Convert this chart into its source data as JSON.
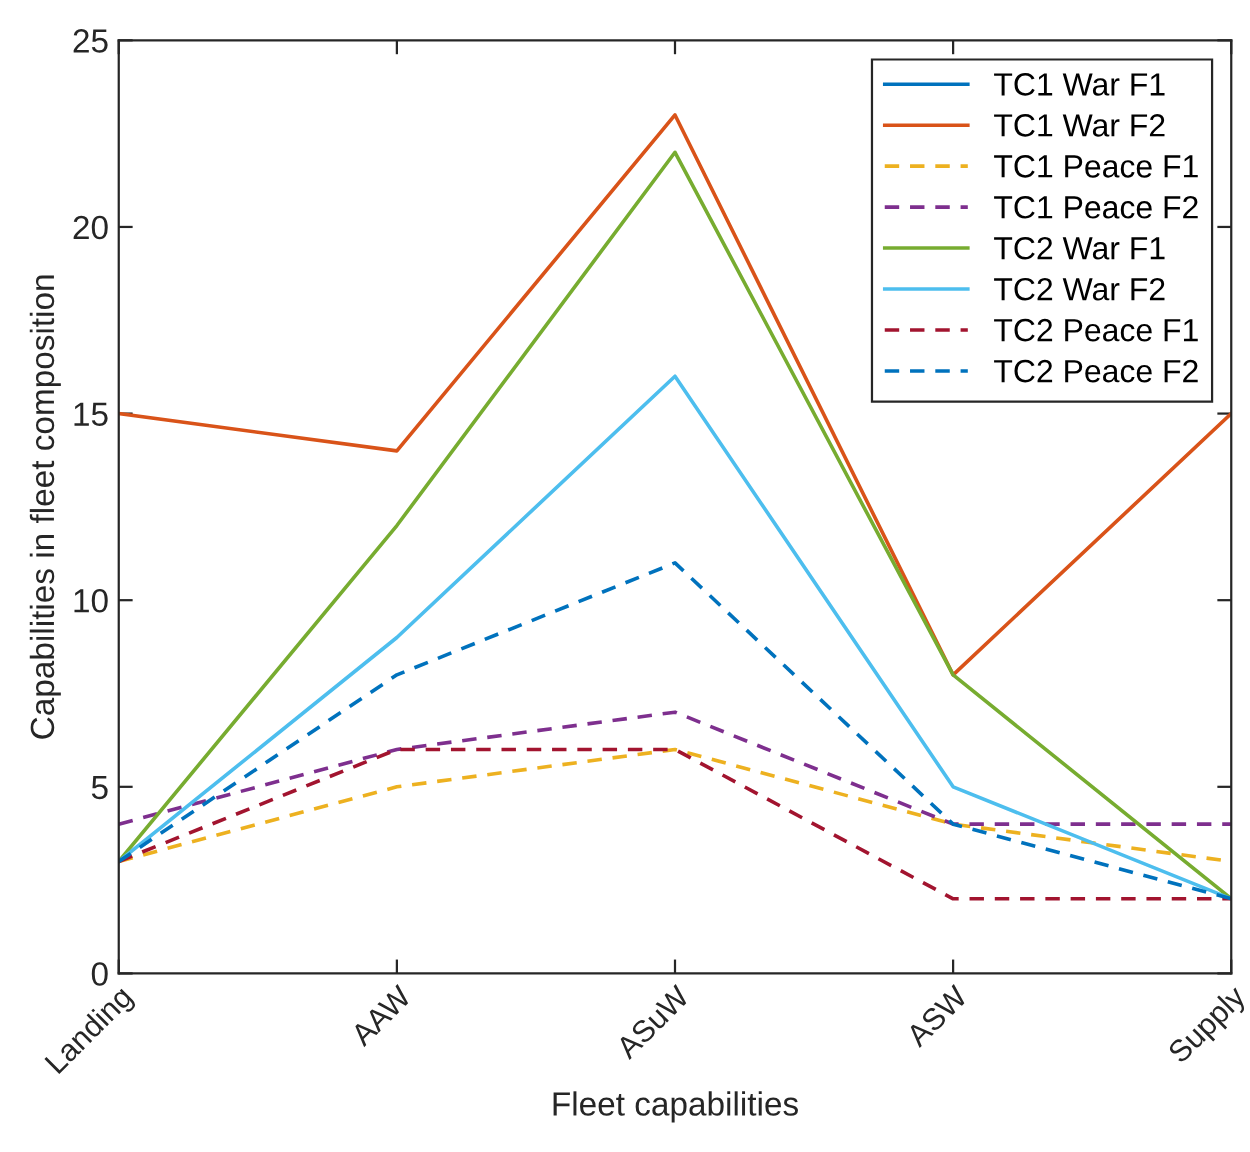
{
  "chart_data": {
    "type": "line",
    "xlabel": "Fleet capabilities",
    "ylabel": "Capabilities in fleet composition",
    "categories": [
      "Landing",
      "AAW",
      "ASuW",
      "ASW",
      "Supply"
    ],
    "series": [
      {
        "name": "TC1 War F1",
        "color": "#0072bd",
        "line_style": "solid",
        "values": [
          null,
          null,
          null,
          null,
          null
        ]
      },
      {
        "name": "TC1 War F2",
        "color": "#d95319",
        "line_style": "solid",
        "values": [
          15,
          14,
          23,
          8,
          15
        ]
      },
      {
        "name": "TC1 Peace F1",
        "color": "#edb120",
        "line_style": "dashed",
        "values": [
          3,
          5,
          6,
          4,
          3
        ]
      },
      {
        "name": "TC1 Peace F2",
        "color": "#7e2f8e",
        "line_style": "dashed",
        "values": [
          4,
          6,
          7,
          4,
          4
        ]
      },
      {
        "name": "TC2 War F1",
        "color": "#77ac30",
        "line_style": "solid",
        "values": [
          3,
          12,
          22,
          8,
          2
        ]
      },
      {
        "name": "TC2 War F2",
        "color": "#4dbeee",
        "line_style": "solid",
        "values": [
          3,
          9,
          16,
          5,
          2
        ]
      },
      {
        "name": "TC2 Peace F1",
        "color": "#a2142f",
        "line_style": "dashed",
        "values": [
          3,
          6,
          6,
          2,
          2
        ]
      },
      {
        "name": "TC2 Peace F2",
        "color": "#0072bd",
        "line_style": "dashed",
        "values": [
          3,
          8,
          11,
          4,
          2
        ]
      }
    ],
    "ylim": [
      0,
      25
    ],
    "yticks": [
      0,
      5,
      10,
      15,
      20,
      25
    ],
    "grid": false,
    "legend": "top right",
    "marker": "none"
  }
}
